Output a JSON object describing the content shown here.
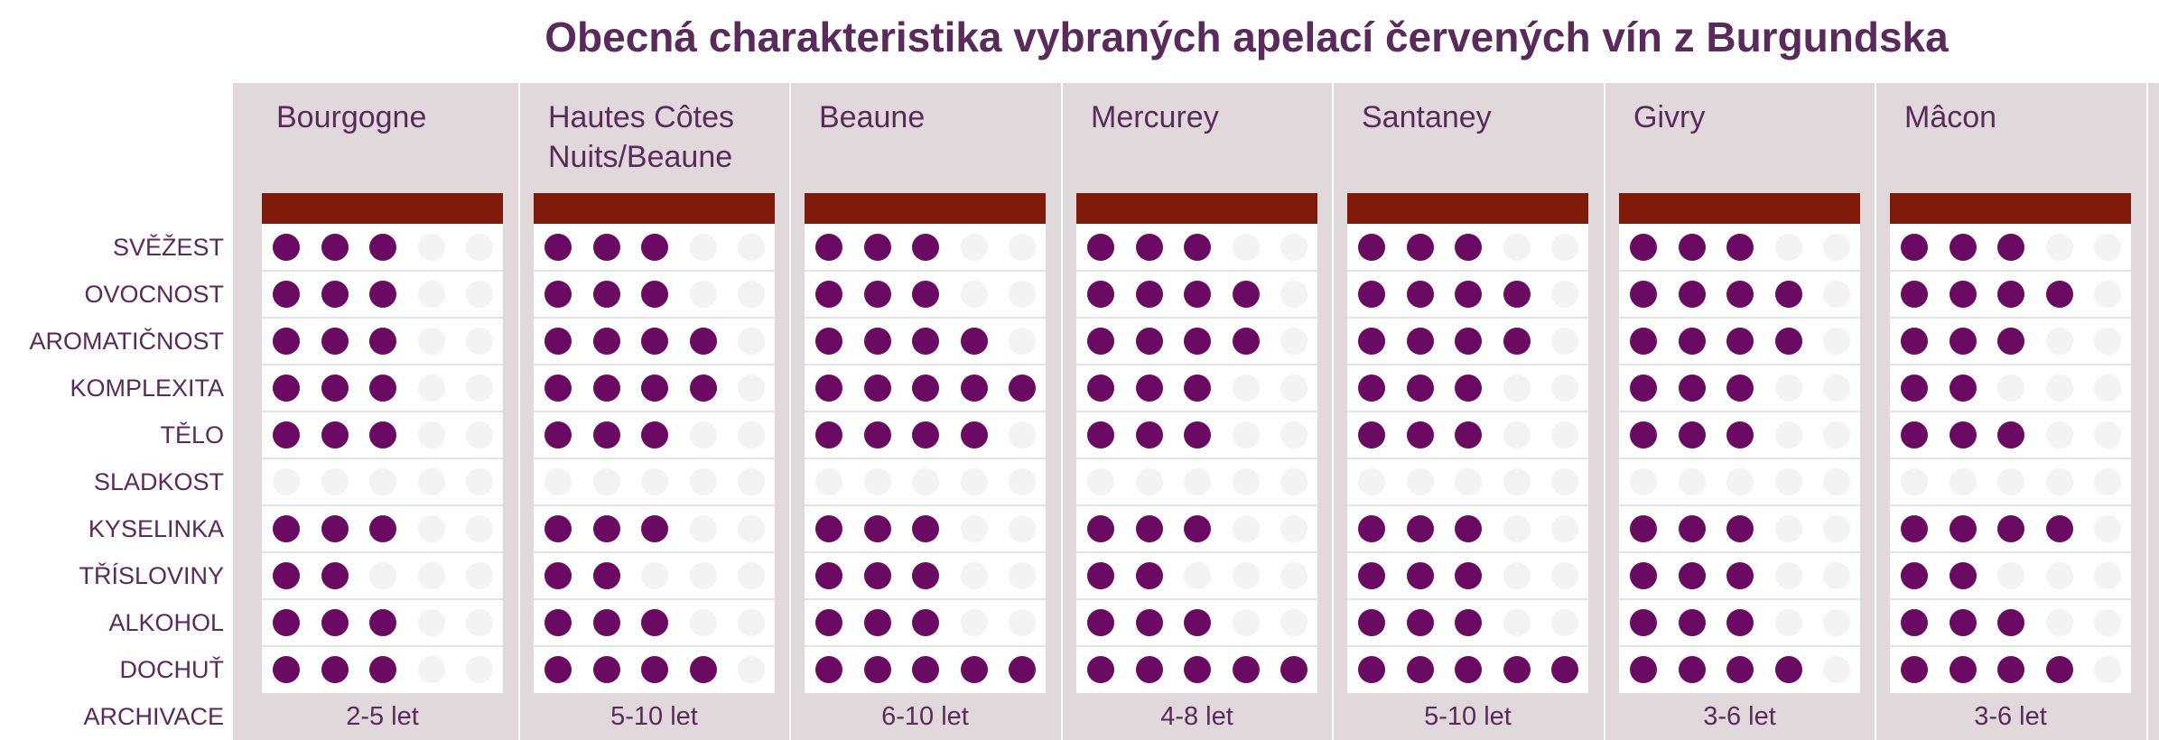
{
  "title": "Obecná charakteristika vybraných apelací červených vín z Burgundska",
  "colors": {
    "filled": "#6b0a62",
    "empty": "#f3f3f3",
    "header_bar": "#7f1a0a",
    "text": "#5a2a5c"
  },
  "chart_data": {
    "type": "table",
    "title": "Obecná charakteristika vybraných apelací červených vín z Burgundska",
    "scale_max": 5,
    "rows": [
      "SVĚŽEST",
      "OVOCNOST",
      "AROMATIČNOST",
      "KOMPLEXITA",
      "TĚLO",
      "SLADKOST",
      "KYSELINKA",
      "TŘÍSLOVINY",
      "ALKOHOL",
      "DOCHUŤ"
    ],
    "archive_label": "ARCHIVACE",
    "appellations": [
      {
        "name": "Bourgogne",
        "values": [
          3,
          3,
          3,
          3,
          3,
          0,
          3,
          2,
          3,
          3
        ],
        "archivace": "2-5 let"
      },
      {
        "name": "Hautes Côtes Nuits/Beaune",
        "values": [
          3,
          3,
          4,
          4,
          3,
          0,
          3,
          2,
          3,
          4
        ],
        "archivace": "5-10 let"
      },
      {
        "name": "Beaune",
        "values": [
          3,
          3,
          4,
          5,
          4,
          0,
          3,
          3,
          3,
          5
        ],
        "archivace": "6-10 let"
      },
      {
        "name": "Mercurey",
        "values": [
          3,
          4,
          4,
          3,
          3,
          0,
          3,
          2,
          3,
          5
        ],
        "archivace": "4-8 let"
      },
      {
        "name": "Santaney",
        "values": [
          3,
          4,
          4,
          3,
          3,
          0,
          3,
          3,
          3,
          5
        ],
        "archivace": "5-10 let"
      },
      {
        "name": "Givry",
        "values": [
          3,
          4,
          4,
          3,
          3,
          0,
          3,
          3,
          3,
          4
        ],
        "archivace": "3-6 let"
      },
      {
        "name": "Mâcon",
        "values": [
          3,
          4,
          3,
          2,
          3,
          0,
          4,
          2,
          3,
          4
        ],
        "archivace": "3-6 let"
      }
    ]
  }
}
